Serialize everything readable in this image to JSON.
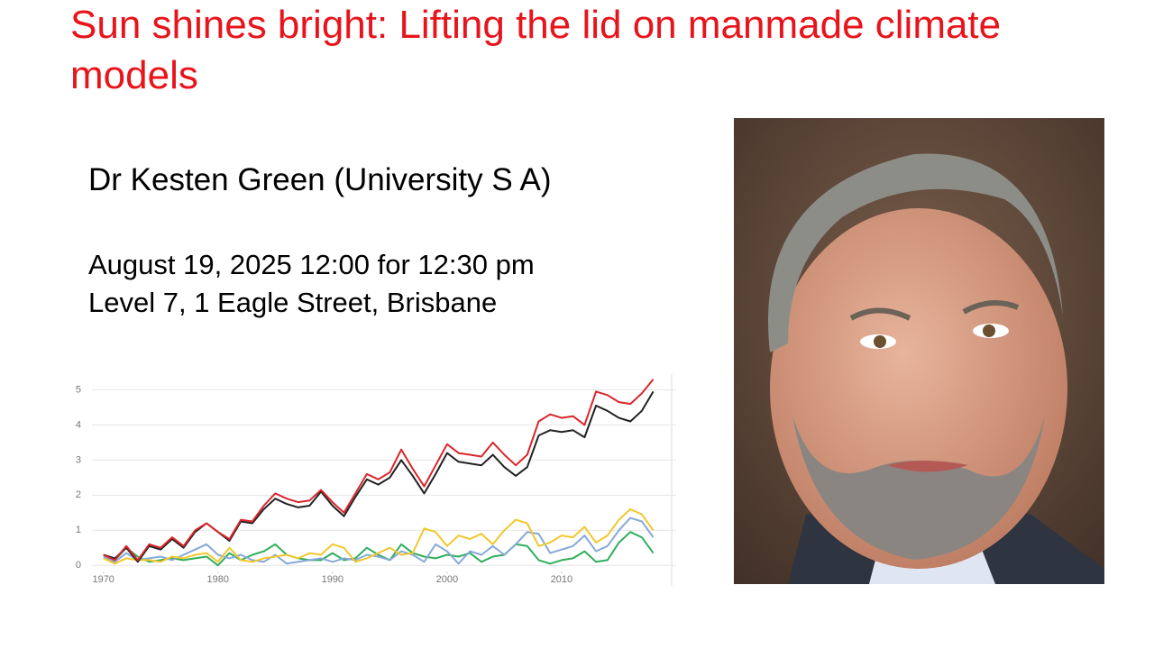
{
  "header": {
    "title": "Sun shines bright: Lifting the lid on manmade climate models"
  },
  "speaker": "Dr Kesten Green (University S A)",
  "date_time": "August 19, 2025 12:00 for 12:30 pm",
  "location": "Level 7, 1 Eagle Street, Brisbane",
  "chart_data": {
    "type": "line",
    "x": [
      1970,
      1971,
      1972,
      1973,
      1974,
      1975,
      1976,
      1977,
      1978,
      1979,
      1980,
      1981,
      1982,
      1983,
      1984,
      1985,
      1986,
      1987,
      1988,
      1989,
      1990,
      1991,
      1992,
      1993,
      1994,
      1995,
      1996,
      1997,
      1998,
      1999,
      2000,
      2001,
      2002,
      2003,
      2004,
      2005,
      2006,
      2007,
      2008,
      2009,
      2010,
      2011,
      2012,
      2013,
      2014,
      2015,
      2016,
      2017,
      2018
    ],
    "series": [
      {
        "color": "#d9262c",
        "values": [
          0.3,
          0.15,
          0.55,
          0.15,
          0.6,
          0.5,
          0.8,
          0.55,
          1.0,
          1.2,
          0.95,
          0.75,
          1.3,
          1.25,
          1.7,
          2.05,
          1.9,
          1.8,
          1.85,
          2.15,
          1.8,
          1.5,
          2.05,
          2.6,
          2.45,
          2.65,
          3.3,
          2.75,
          2.25,
          2.85,
          3.45,
          3.2,
          3.15,
          3.1,
          3.5,
          3.15,
          2.85,
          3.15,
          4.1,
          4.3,
          4.2,
          4.25,
          4.0,
          4.95,
          4.85,
          4.65,
          4.6,
          4.9,
          5.3
        ]
      },
      {
        "color": "#222222",
        "values": [
          0.3,
          0.2,
          0.5,
          0.1,
          0.55,
          0.45,
          0.75,
          0.5,
          0.95,
          1.2,
          0.95,
          0.7,
          1.25,
          1.2,
          1.6,
          1.9,
          1.75,
          1.65,
          1.7,
          2.1,
          1.7,
          1.4,
          1.95,
          2.45,
          2.3,
          2.5,
          3.0,
          2.55,
          2.05,
          2.6,
          3.2,
          2.95,
          2.9,
          2.85,
          3.15,
          2.8,
          2.55,
          2.8,
          3.7,
          3.85,
          3.8,
          3.85,
          3.65,
          4.55,
          4.4,
          4.2,
          4.1,
          4.4,
          4.95
        ]
      },
      {
        "color": "#f2c72e",
        "values": [
          0.2,
          0.05,
          0.2,
          0.15,
          0.15,
          0.1,
          0.25,
          0.2,
          0.3,
          0.35,
          0.1,
          0.5,
          0.15,
          0.1,
          0.2,
          0.25,
          0.3,
          0.2,
          0.35,
          0.3,
          0.6,
          0.5,
          0.1,
          0.2,
          0.35,
          0.5,
          0.3,
          0.35,
          1.05,
          0.95,
          0.55,
          0.85,
          0.75,
          0.9,
          0.6,
          1.0,
          1.3,
          1.2,
          0.55,
          0.65,
          0.85,
          0.8,
          1.1,
          0.65,
          0.85,
          1.3,
          1.6,
          1.45,
          1.0
        ]
      },
      {
        "color": "#86a9d8",
        "values": [
          0.25,
          0.1,
          0.35,
          0.15,
          0.2,
          0.25,
          0.15,
          0.3,
          0.45,
          0.6,
          0.3,
          0.2,
          0.3,
          0.15,
          0.1,
          0.3,
          0.05,
          0.1,
          0.15,
          0.2,
          0.1,
          0.2,
          0.15,
          0.3,
          0.25,
          0.15,
          0.4,
          0.3,
          0.1,
          0.6,
          0.4,
          0.05,
          0.4,
          0.3,
          0.55,
          0.3,
          0.6,
          0.95,
          0.9,
          0.35,
          0.45,
          0.55,
          0.85,
          0.4,
          0.55,
          1.0,
          1.35,
          1.25,
          0.8
        ]
      },
      {
        "color": "#2fae5c",
        "values": [
          0.3,
          0.15,
          0.5,
          0.25,
          0.1,
          0.15,
          0.2,
          0.15,
          0.2,
          0.25,
          0,
          0.35,
          0.15,
          0.3,
          0.4,
          0.6,
          0.3,
          0.2,
          0.15,
          0.15,
          0.35,
          0.15,
          0.2,
          0.5,
          0.3,
          0.15,
          0.6,
          0.35,
          0.25,
          0.2,
          0.3,
          0.25,
          0.35,
          0.1,
          0.25,
          0.3,
          0.6,
          0.55,
          0.15,
          0.05,
          0.15,
          0.2,
          0.4,
          0.1,
          0.15,
          0.65,
          0.95,
          0.8,
          0.35
        ]
      }
    ],
    "xlim": [
      1969,
      2020
    ],
    "xticks": [
      1970,
      1980,
      1990,
      2000,
      2010
    ],
    "ylim": [
      -0.2,
      5.5
    ],
    "yticks": [
      0,
      1,
      2,
      3,
      4,
      5
    ],
    "grid": true
  }
}
